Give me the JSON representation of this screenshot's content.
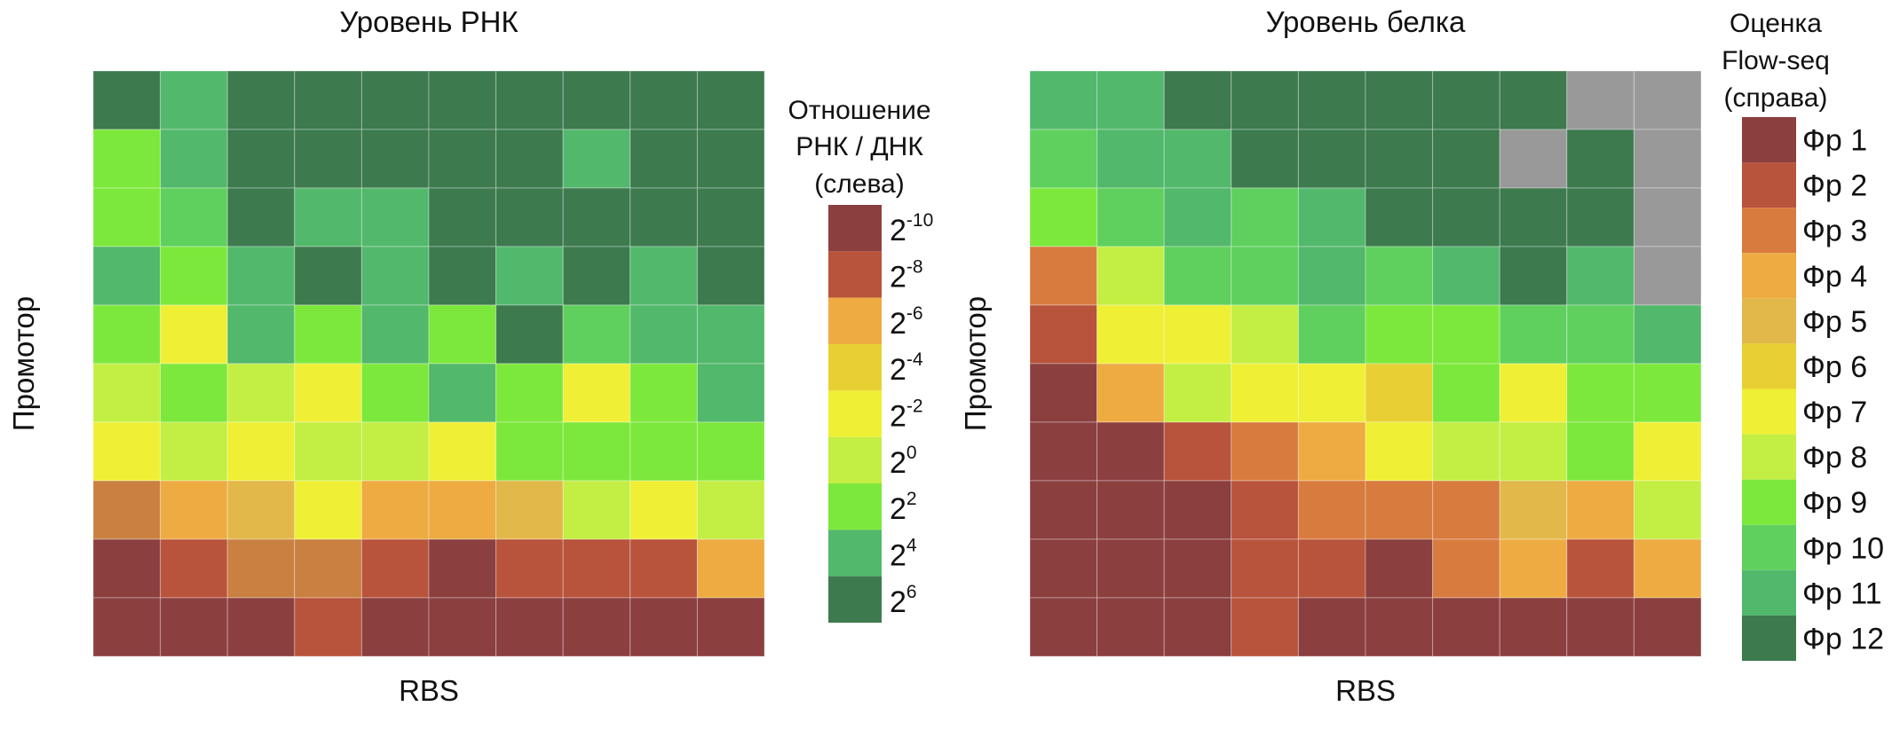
{
  "chart_data": [
    {
      "type": "heatmap",
      "title": "Уровень РНК",
      "xlabel": "RBS",
      "ylabel": "Промотор",
      "legend": {
        "title_lines": [
          "Отношение",
          "РНК / ДНК",
          "(слева)"
        ],
        "placement": "right",
        "base": "2",
        "ticks": [
          -10,
          -8,
          -6,
          -4,
          -2,
          0,
          2,
          4,
          6
        ]
      },
      "value_units": "log2(RNA/DNA)",
      "colors": {
        "-10": "#8B3F3F",
        "-8": "#B8533C",
        "-7": "#C98041",
        "-6": "#EDAB42",
        "-5": "#E2B84A",
        "-4": "#E8D034",
        "-2": "#EFEF35",
        "0": "#C3EE43",
        "2": "#7DE83C",
        "3": "#5FD05E",
        "4": "#52B86B",
        "6": "#3D7A4E"
      },
      "values": [
        [
          6,
          4,
          6,
          6,
          6,
          6,
          6,
          6,
          6,
          6
        ],
        [
          2,
          4,
          6,
          6,
          6,
          6,
          6,
          4,
          6,
          6
        ],
        [
          2,
          3,
          6,
          4,
          4,
          6,
          6,
          6,
          6,
          6
        ],
        [
          4,
          2,
          4,
          6,
          4,
          6,
          4,
          6,
          4,
          6
        ],
        [
          2,
          -2,
          4,
          2,
          4,
          2,
          6,
          3,
          4,
          4
        ],
        [
          0,
          2,
          0,
          -2,
          2,
          4,
          2,
          -2,
          2,
          4
        ],
        [
          -2,
          0,
          -2,
          0,
          0,
          -2,
          2,
          2,
          2,
          2
        ],
        [
          -7,
          -6,
          -5,
          -2,
          -6,
          -6,
          -5,
          0,
          -2,
          0
        ],
        [
          -10,
          -8,
          -7,
          -7,
          -8,
          -10,
          -8,
          -8,
          -8,
          -6
        ],
        [
          -10,
          -10,
          -10,
          -8,
          -10,
          -10,
          -10,
          -10,
          -10,
          -10
        ]
      ]
    },
    {
      "type": "heatmap",
      "title": "Уровень белка",
      "xlabel": "RBS",
      "ylabel": "Промотор",
      "legend": {
        "title_lines": [
          "Оценка",
          "Flow-seq",
          "(справа)"
        ],
        "placement": "right",
        "labels": [
          "Фр 1",
          "Фр 2",
          "Фр 3",
          "Фр 4",
          "Фр 5",
          "Фр 6",
          "Фр 7",
          "Фр 8",
          "Фр 9",
          "Фр 10",
          "Фр 11",
          "Фр 12"
        ]
      },
      "missing_color": "#999999",
      "colors": [
        "#8B3F3F",
        "#B8533C",
        "#D87B3E",
        "#EDAB42",
        "#E2B84A",
        "#E8D034",
        "#EFEF35",
        "#C3EE43",
        "#7DE83C",
        "#5FD05E",
        "#52B86B",
        "#3D7A4E"
      ],
      "values": [
        [
          11,
          11,
          12,
          12,
          12,
          12,
          12,
          12,
          null,
          null
        ],
        [
          10,
          11,
          11,
          12,
          12,
          12,
          12,
          null,
          12,
          null
        ],
        [
          9,
          10,
          11,
          10,
          11,
          12,
          12,
          12,
          12,
          null
        ],
        [
          3,
          8,
          10,
          10,
          11,
          10,
          11,
          12,
          11,
          null
        ],
        [
          2,
          7,
          7,
          8,
          10,
          9,
          9,
          10,
          10,
          11
        ],
        [
          1,
          4,
          8,
          7,
          7,
          6,
          9,
          7,
          9,
          9
        ],
        [
          1,
          1,
          2,
          3,
          4,
          7,
          8,
          8,
          9,
          7
        ],
        [
          1,
          1,
          1,
          2,
          3,
          3,
          3,
          5,
          4,
          8
        ],
        [
          1,
          1,
          1,
          2,
          2,
          1,
          3,
          4,
          2,
          4
        ],
        [
          1,
          1,
          1,
          2,
          1,
          1,
          1,
          1,
          1,
          1
        ]
      ]
    }
  ]
}
